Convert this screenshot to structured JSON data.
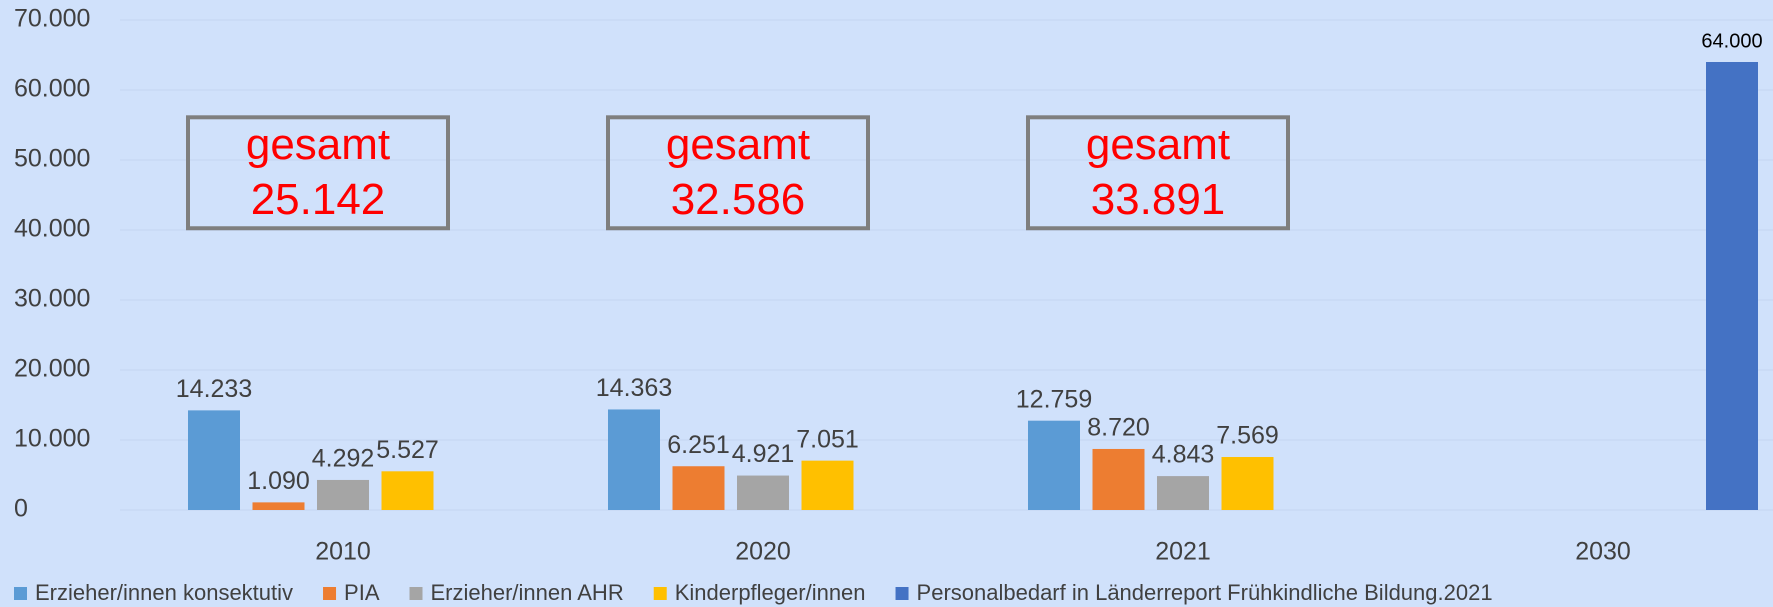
{
  "chart_data": {
    "type": "bar",
    "categories": [
      "2010",
      "2020",
      "2021",
      "2030"
    ],
    "series": [
      {
        "name": "Erzieher/innen konsektutiv",
        "color": "#5b9bd5",
        "values": [
          14233,
          14363,
          12759,
          null
        ],
        "value_labels": [
          "14.233",
          "14.363",
          "12.759",
          null
        ]
      },
      {
        "name": "PIA",
        "color": "#ed7d31",
        "values": [
          1090,
          6251,
          8720,
          null
        ],
        "value_labels": [
          "1.090",
          "6.251",
          "8.720",
          null
        ]
      },
      {
        "name": "Erzieher/innen AHR",
        "color": "#a5a5a5",
        "values": [
          4292,
          4921,
          4843,
          null
        ],
        "value_labels": [
          "4.292",
          "4.921",
          "4.843",
          null
        ]
      },
      {
        "name": "Kinderpfleger/innen",
        "color": "#ffc000",
        "values": [
          5527,
          7051,
          7569,
          null
        ],
        "value_labels": [
          "5.527",
          "7.051",
          "7.569",
          null
        ]
      },
      {
        "name": "Personalbedarf in Länderreport Frühkindliche Bildung.2021",
        "color": "#4472c4",
        "values": [
          null,
          null,
          null,
          64000
        ],
        "value_labels": [
          null,
          null,
          null,
          "64.000"
        ]
      }
    ],
    "ylim": [
      0,
      70000
    ],
    "yticks": [
      0,
      {
        "value": 10000,
        "label": "10.000"
      },
      {
        "value": 20000,
        "label": "20.000"
      },
      {
        "value": 30000,
        "label": "30.000"
      },
      {
        "value": 40000,
        "label": "40.000"
      },
      {
        "value": 50000,
        "label": "50.000"
      },
      {
        "value": 60000,
        "label": "60.000"
      },
      {
        "value": 70000,
        "label": "70.000"
      }
    ],
    "grid": true,
    "legend": "bottom",
    "annotations": [
      {
        "text": [
          "gesamt",
          "25.142"
        ]
      },
      {
        "text": [
          "gesamt",
          "32.586"
        ]
      },
      {
        "text": [
          "gesamt",
          "33.891"
        ]
      }
    ]
  }
}
